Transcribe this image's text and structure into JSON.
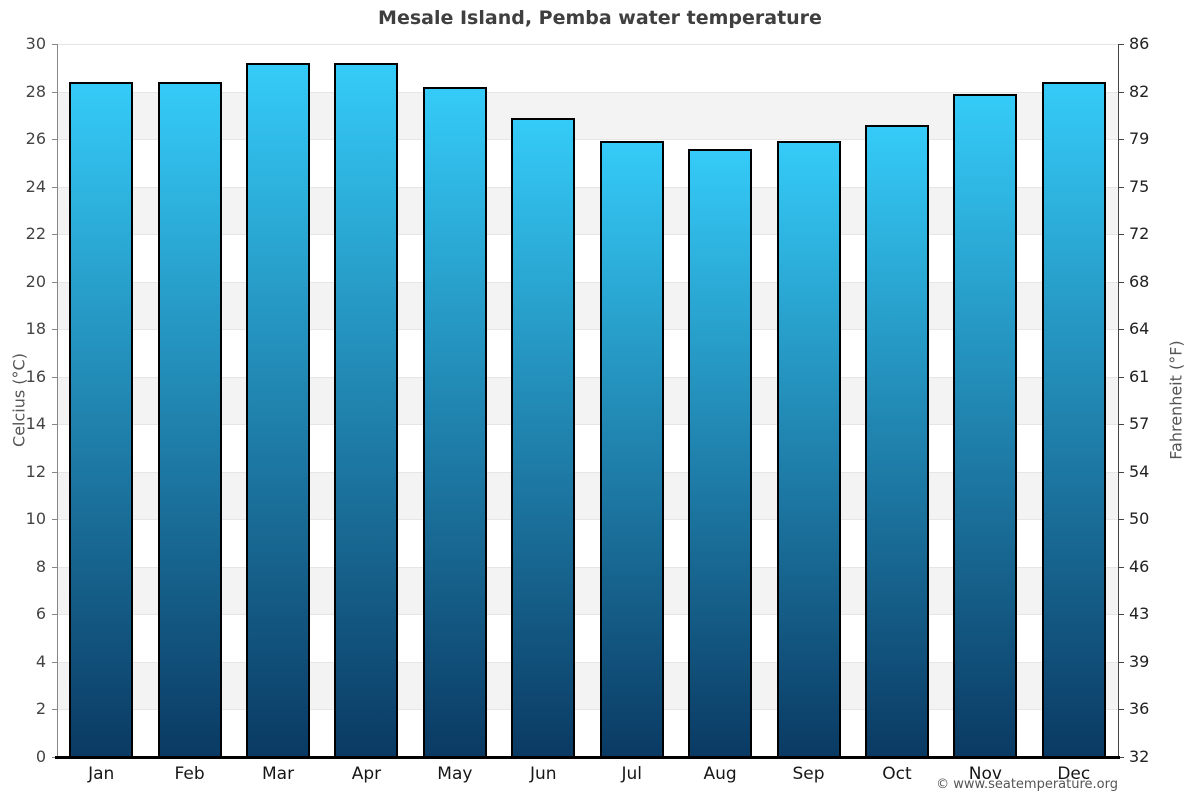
{
  "page": {
    "watermark": "© www.seatemperature.org"
  },
  "chart_data": {
    "type": "bar",
    "title": "Mesale Island, Pemba water temperature",
    "xlabel": "",
    "ylabel_left": "Celcius (°C)",
    "ylabel_right": "Fahrenheit (°F)",
    "categories": [
      "Jan",
      "Feb",
      "Mar",
      "Apr",
      "May",
      "Jun",
      "Jul",
      "Aug",
      "Sep",
      "Oct",
      "Nov",
      "Dec"
    ],
    "series": [
      {
        "name": "Water temperature",
        "unit": "°C",
        "values": [
          28.4,
          28.4,
          29.2,
          29.2,
          28.2,
          26.9,
          25.9,
          25.6,
          25.9,
          26.6,
          27.9,
          28.4
        ]
      }
    ],
    "ylim": [
      0,
      30
    ],
    "yticks_celsius": [
      30,
      28,
      26,
      24,
      22,
      20,
      18,
      16,
      14,
      12,
      10,
      8,
      6,
      4,
      2,
      0
    ],
    "yticks_fahrenheit": [
      86,
      82,
      79,
      75,
      72,
      68,
      64,
      61,
      57,
      54,
      50,
      46,
      43,
      39,
      36,
      32
    ],
    "legend": "none",
    "grid": "alternating-horizontal-bands",
    "colors": {
      "bar_gradient_top": "#35CBF8",
      "bar_gradient_bottom": "#0A3A63",
      "bar_border": "#000000",
      "band_alt": "#f3f3f3",
      "grid_line": "#e6e6e6",
      "axis_line_left": "#888888",
      "axis_line_right": "#444444",
      "axis_line_bottom": "#000000",
      "title_color": "#3f3f3f",
      "tick_label_color": "#444444",
      "month_label_color": "#161616",
      "fahrenheit_label_color": "#222222",
      "watermark_color": "#555555"
    }
  }
}
